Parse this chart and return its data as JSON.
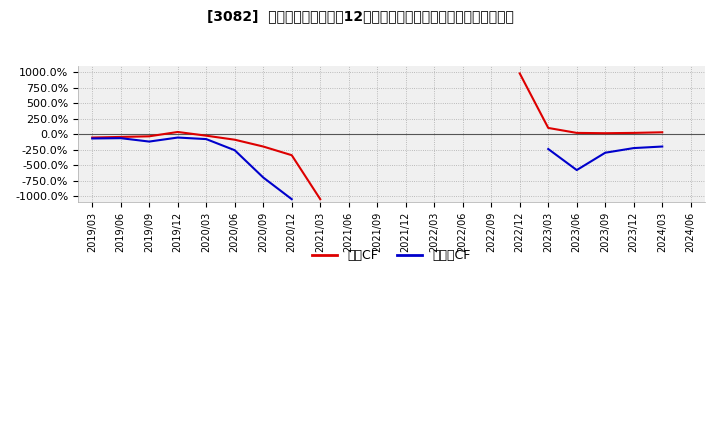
{
  "title": "[3082]  キャッシュフローの12か月移動合計の対前年同期増減率の推移",
  "ylim": [
    -1100,
    1100
  ],
  "yticks": [
    1000,
    750,
    500,
    250,
    0,
    -250,
    -500,
    -750,
    -1000
  ],
  "ytick_labels": [
    "1000.0%",
    "750.0%",
    "500.0%",
    "250.0%",
    "0.0%",
    "-250.0%",
    "-500.0%",
    "-750.0%",
    "-1000.0%"
  ],
  "legend_labels": [
    "営業CF",
    "フリーCF"
  ],
  "line_colors": [
    "#dd0000",
    "#0000cc"
  ],
  "background_color": "#f0f0f0",
  "dates": [
    "2019/03",
    "2019/06",
    "2019/09",
    "2019/12",
    "2020/03",
    "2020/06",
    "2020/09",
    "2020/12",
    "2021/03",
    "2021/06",
    "2021/09",
    "2021/12",
    "2022/03",
    "2022/06",
    "2022/09",
    "2022/12",
    "2023/03",
    "2023/06",
    "2023/09",
    "2023/12",
    "2024/03",
    "2024/06"
  ],
  "operating_cf": [
    -55,
    -45,
    -35,
    35,
    -25,
    -90,
    -200,
    -340,
    -1050,
    null,
    null,
    null,
    null,
    null,
    null,
    980,
    100,
    20,
    15,
    20,
    30,
    null
  ],
  "free_cf": [
    -70,
    -65,
    -120,
    -55,
    -80,
    -260,
    -700,
    -1050,
    null,
    null,
    null,
    null,
    null,
    null,
    null,
    null,
    -240,
    -580,
    -300,
    -225,
    -200,
    null
  ]
}
